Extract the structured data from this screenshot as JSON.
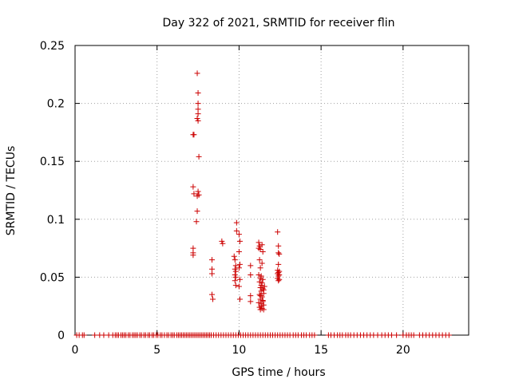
{
  "chart_data": {
    "type": "scatter",
    "title": "Day 322 of 2021, SRMTID for receiver flin",
    "xlabel": "GPS time / hours",
    "ylabel": "SRMTID / TECUs",
    "xlim": [
      0,
      24
    ],
    "ylim": [
      0,
      0.25
    ],
    "x_ticks": [
      0,
      5,
      10,
      15,
      20
    ],
    "x_tick_labels": [
      "0",
      "5",
      "10",
      "15",
      "20"
    ],
    "y_ticks": [
      0,
      0.05,
      0.1,
      0.15,
      0.2,
      0.25
    ],
    "y_tick_labels": [
      "0",
      "0.05",
      "0.1",
      "0.15",
      "0.2",
      "0.25"
    ],
    "grid": true,
    "legend": false,
    "marker": "+",
    "color": "#cc0000",
    "points": [
      [
        7.2,
        0.173
      ],
      [
        7.25,
        0.173
      ],
      [
        7.45,
        0.226
      ],
      [
        7.5,
        0.209
      ],
      [
        7.5,
        0.2
      ],
      [
        7.5,
        0.195
      ],
      [
        7.5,
        0.191
      ],
      [
        7.45,
        0.187
      ],
      [
        7.5,
        0.185
      ],
      [
        7.55,
        0.154
      ],
      [
        7.2,
        0.128
      ],
      [
        7.25,
        0.122
      ],
      [
        7.45,
        0.12
      ],
      [
        7.5,
        0.124
      ],
      [
        7.55,
        0.121
      ],
      [
        7.45,
        0.107
      ],
      [
        7.4,
        0.098
      ],
      [
        7.2,
        0.075
      ],
      [
        7.2,
        0.071
      ],
      [
        7.2,
        0.069
      ],
      [
        8.35,
        0.065
      ],
      [
        8.35,
        0.057
      ],
      [
        8.35,
        0.053
      ],
      [
        8.35,
        0.035
      ],
      [
        8.4,
        0.031
      ],
      [
        8.95,
        0.081
      ],
      [
        9.0,
        0.079
      ],
      [
        9.7,
        0.068
      ],
      [
        9.75,
        0.065
      ],
      [
        9.8,
        0.06
      ],
      [
        9.75,
        0.057
      ],
      [
        9.8,
        0.055
      ],
      [
        9.75,
        0.052
      ],
      [
        9.8,
        0.05
      ],
      [
        9.75,
        0.047
      ],
      [
        9.8,
        0.043
      ],
      [
        9.85,
        0.097
      ],
      [
        9.85,
        0.09
      ],
      [
        10.0,
        0.087
      ],
      [
        10.05,
        0.081
      ],
      [
        10.0,
        0.072
      ],
      [
        10.05,
        0.061
      ],
      [
        10.0,
        0.058
      ],
      [
        10.05,
        0.048
      ],
      [
        10.0,
        0.042
      ],
      [
        10.05,
        0.031
      ],
      [
        10.7,
        0.06
      ],
      [
        10.7,
        0.052
      ],
      [
        10.7,
        0.034
      ],
      [
        10.7,
        0.029
      ],
      [
        11.2,
        0.08
      ],
      [
        11.25,
        0.077
      ],
      [
        11.2,
        0.075
      ],
      [
        11.3,
        0.074
      ],
      [
        11.25,
        0.065
      ],
      [
        11.3,
        0.058
      ],
      [
        11.2,
        0.052
      ],
      [
        11.3,
        0.049
      ],
      [
        11.25,
        0.046
      ],
      [
        11.35,
        0.043
      ],
      [
        11.4,
        0.078
      ],
      [
        11.45,
        0.072
      ],
      [
        11.4,
        0.062
      ],
      [
        11.35,
        0.051
      ],
      [
        11.45,
        0.048
      ],
      [
        11.4,
        0.045
      ],
      [
        11.3,
        0.041
      ],
      [
        11.45,
        0.04
      ],
      [
        11.35,
        0.038
      ],
      [
        11.5,
        0.036
      ],
      [
        11.25,
        0.035
      ],
      [
        11.4,
        0.033
      ],
      [
        11.3,
        0.031
      ],
      [
        11.45,
        0.029
      ],
      [
        11.35,
        0.027
      ],
      [
        11.5,
        0.026
      ],
      [
        11.25,
        0.024
      ],
      [
        11.4,
        0.023
      ],
      [
        11.3,
        0.022
      ],
      [
        11.5,
        0.022
      ],
      [
        11.35,
        0.025
      ],
      [
        11.45,
        0.03
      ],
      [
        11.3,
        0.034
      ],
      [
        11.5,
        0.039
      ],
      [
        11.2,
        0.028
      ],
      [
        11.55,
        0.042
      ],
      [
        12.35,
        0.089
      ],
      [
        12.4,
        0.077
      ],
      [
        12.4,
        0.071
      ],
      [
        12.45,
        0.07
      ],
      [
        12.4,
        0.061
      ],
      [
        12.35,
        0.056
      ],
      [
        12.45,
        0.055
      ],
      [
        12.4,
        0.054
      ],
      [
        12.35,
        0.053
      ],
      [
        12.45,
        0.052
      ],
      [
        12.4,
        0.051
      ],
      [
        12.35,
        0.049
      ],
      [
        12.45,
        0.048
      ],
      [
        12.4,
        0.047
      ],
      [
        0.1,
        0
      ],
      [
        0.25,
        0
      ],
      [
        0.45,
        0
      ],
      [
        0.55,
        0
      ],
      [
        1.2,
        0
      ],
      [
        1.5,
        0
      ],
      [
        1.75,
        0
      ],
      [
        2.05,
        0
      ],
      [
        2.3,
        0
      ],
      [
        2.45,
        0
      ],
      [
        2.55,
        0
      ],
      [
        2.65,
        0
      ],
      [
        2.8,
        0
      ],
      [
        2.9,
        0
      ],
      [
        3.0,
        0
      ],
      [
        3.1,
        0
      ],
      [
        3.25,
        0
      ],
      [
        3.35,
        0
      ],
      [
        3.5,
        0
      ],
      [
        3.6,
        0
      ],
      [
        3.7,
        0
      ],
      [
        3.8,
        0
      ],
      [
        3.95,
        0
      ],
      [
        4.05,
        0
      ],
      [
        4.2,
        0
      ],
      [
        4.3,
        0
      ],
      [
        4.45,
        0
      ],
      [
        4.55,
        0
      ],
      [
        4.7,
        0
      ],
      [
        4.8,
        0
      ],
      [
        4.95,
        0
      ],
      [
        5.05,
        0
      ],
      [
        5.2,
        0
      ],
      [
        5.3,
        0
      ],
      [
        5.45,
        0
      ],
      [
        5.6,
        0
      ],
      [
        5.7,
        0
      ],
      [
        5.85,
        0
      ],
      [
        5.95,
        0
      ],
      [
        6.05,
        0
      ],
      [
        6.2,
        0
      ],
      [
        6.3,
        0
      ],
      [
        6.4,
        0
      ],
      [
        6.5,
        0
      ],
      [
        6.6,
        0
      ],
      [
        6.7,
        0
      ],
      [
        6.8,
        0
      ],
      [
        6.9,
        0
      ],
      [
        7.0,
        0
      ],
      [
        7.1,
        0
      ],
      [
        7.2,
        0
      ],
      [
        7.3,
        0
      ],
      [
        7.4,
        0
      ],
      [
        7.5,
        0
      ],
      [
        7.6,
        0
      ],
      [
        7.7,
        0
      ],
      [
        7.8,
        0
      ],
      [
        7.9,
        0
      ],
      [
        8.0,
        0
      ],
      [
        8.1,
        0
      ],
      [
        8.2,
        0
      ],
      [
        8.3,
        0
      ],
      [
        8.45,
        0
      ],
      [
        8.6,
        0
      ],
      [
        8.75,
        0
      ],
      [
        8.9,
        0
      ],
      [
        9.05,
        0
      ],
      [
        9.2,
        0
      ],
      [
        9.35,
        0
      ],
      [
        9.5,
        0
      ],
      [
        9.65,
        0
      ],
      [
        9.8,
        0
      ],
      [
        9.95,
        0
      ],
      [
        10.1,
        0
      ],
      [
        10.25,
        0
      ],
      [
        10.4,
        0
      ],
      [
        10.55,
        0
      ],
      [
        10.7,
        0
      ],
      [
        10.85,
        0
      ],
      [
        11.0,
        0
      ],
      [
        11.15,
        0
      ],
      [
        11.3,
        0
      ],
      [
        11.45,
        0
      ],
      [
        11.6,
        0
      ],
      [
        11.75,
        0
      ],
      [
        11.9,
        0
      ],
      [
        12.05,
        0
      ],
      [
        12.2,
        0
      ],
      [
        12.35,
        0
      ],
      [
        12.5,
        0
      ],
      [
        12.65,
        0
      ],
      [
        12.8,
        0
      ],
      [
        12.95,
        0
      ],
      [
        13.1,
        0
      ],
      [
        13.3,
        0
      ],
      [
        13.45,
        0
      ],
      [
        13.6,
        0
      ],
      [
        13.8,
        0
      ],
      [
        13.95,
        0
      ],
      [
        14.1,
        0
      ],
      [
        14.3,
        0
      ],
      [
        14.45,
        0
      ],
      [
        14.6,
        0
      ],
      [
        15.45,
        0
      ],
      [
        15.6,
        0
      ],
      [
        15.8,
        0
      ],
      [
        16.0,
        0
      ],
      [
        16.15,
        0
      ],
      [
        16.3,
        0
      ],
      [
        16.5,
        0
      ],
      [
        16.65,
        0
      ],
      [
        16.8,
        0
      ],
      [
        17.0,
        0
      ],
      [
        17.2,
        0
      ],
      [
        17.4,
        0
      ],
      [
        17.6,
        0
      ],
      [
        17.8,
        0
      ],
      [
        18.0,
        0
      ],
      [
        18.2,
        0
      ],
      [
        18.45,
        0
      ],
      [
        18.7,
        0
      ],
      [
        18.9,
        0
      ],
      [
        19.1,
        0
      ],
      [
        19.3,
        0
      ],
      [
        19.6,
        0
      ],
      [
        20.0,
        0
      ],
      [
        20.2,
        0
      ],
      [
        20.35,
        0
      ],
      [
        20.5,
        0
      ],
      [
        20.65,
        0
      ],
      [
        21.0,
        0
      ],
      [
        21.2,
        0
      ],
      [
        21.4,
        0
      ],
      [
        21.6,
        0
      ],
      [
        21.8,
        0
      ],
      [
        22.0,
        0
      ],
      [
        22.2,
        0
      ],
      [
        22.4,
        0
      ],
      [
        22.6,
        0
      ],
      [
        22.8,
        0
      ]
    ]
  }
}
